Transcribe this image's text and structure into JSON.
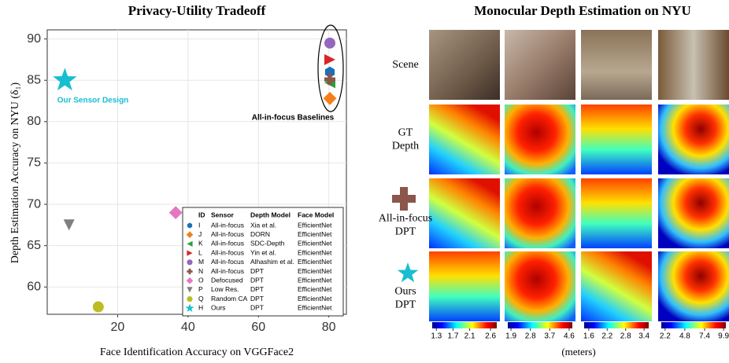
{
  "chart_data": {
    "type": "scatter",
    "title": "Privacy-Utility Tradeoff",
    "x_label": "Face Identification Accuracy on VGGFace2",
    "y_label": "Depth Estimation Accuracy on NYU  (δ₁)",
    "xlim": [
      0,
      85
    ],
    "xticks": [
      20,
      40,
      60,
      80
    ],
    "ylim": [
      56.7,
      91.1
    ],
    "yticks": [
      60,
      65,
      70,
      75,
      80,
      85,
      90
    ],
    "grid": true,
    "annotations": [
      "Our Sensor Design",
      "All-in-focus Baselines"
    ],
    "legend_headers": [
      "ID",
      "Sensor",
      "Depth Model",
      "Face Model"
    ],
    "series": [
      {
        "id": "I",
        "sensor": "All-in-focus",
        "depth_model": "Xia et al.",
        "face_model": "EfficientNet",
        "marker": "hexagon",
        "color": "#1f6fb4",
        "x": [
          80.3
        ],
        "values": [
          86
        ]
      },
      {
        "id": "J",
        "sensor": "All-in-focus",
        "depth_model": "DORN",
        "face_model": "EfficientNet",
        "marker": "diamond",
        "color": "#f47f1a",
        "x": [
          80.3
        ],
        "values": [
          82.8
        ]
      },
      {
        "id": "K",
        "sensor": "All-in-focus",
        "depth_model": "SDC-Depth",
        "face_model": "EfficientNet",
        "marker": "triangle-left",
        "color": "#2e9e3a",
        "x": [
          80.3
        ],
        "values": [
          84.7
        ]
      },
      {
        "id": "L",
        "sensor": "All-in-focus",
        "depth_model": "Yin et al.",
        "face_model": "EfficientNet",
        "marker": "triangle-right",
        "color": "#d62728",
        "x": [
          80.3
        ],
        "values": [
          87.5
        ]
      },
      {
        "id": "M",
        "sensor": "All-in-focus",
        "depth_model": "Alhashim et al.",
        "face_model": "EfficientNet",
        "marker": "circle",
        "color": "#9467bd",
        "x": [
          80.3
        ],
        "values": [
          89.5
        ]
      },
      {
        "id": "N",
        "sensor": "All-in-focus",
        "depth_model": "DPT",
        "face_model": "EfficientNet",
        "marker": "plus",
        "color": "#8c564b",
        "x": [
          80.3
        ],
        "values": [
          85.1
        ]
      },
      {
        "id": "O",
        "sensor": "Defocused",
        "depth_model": "DPT",
        "face_model": "EfficientNet",
        "marker": "diamond",
        "color": "#e377c2",
        "x": [
          36.5
        ],
        "values": [
          69
        ]
      },
      {
        "id": "P",
        "sensor": "Low Res.",
        "depth_model": "DPT",
        "face_model": "EfficientNet",
        "marker": "triangle-down",
        "color": "#7f7f7f",
        "x": [
          6.2
        ],
        "values": [
          67.5
        ]
      },
      {
        "id": "Q",
        "sensor": "Random CA",
        "depth_model": "DPT",
        "face_model": "EfficientNet",
        "marker": "circle",
        "color": "#bcbd22",
        "x": [
          14.5
        ],
        "values": [
          57.6
        ]
      },
      {
        "id": "H",
        "sensor": "Ours",
        "depth_model": "DPT",
        "face_model": "EfficientNet",
        "marker": "star",
        "color": "#17becf",
        "x": [
          5
        ],
        "values": [
          85
        ]
      }
    ]
  },
  "depth_panel": {
    "title": "Monocular Depth Estimation on NYU",
    "row_labels": [
      [
        "Scene"
      ],
      [
        "GT",
        "Depth"
      ],
      [
        "All-in-focus",
        "DPT"
      ],
      [
        "Ours",
        "DPT"
      ]
    ],
    "unit": "(meters)",
    "colorbars": [
      {
        "lim": [
          1.2,
          2.75
        ],
        "ticks": [
          1.3,
          1.7,
          2.1,
          2.6
        ]
      },
      {
        "lim": [
          1.75,
          4.75
        ],
        "ticks": [
          1.9,
          2.8,
          3.7,
          4.6
        ]
      },
      {
        "lim": [
          1.45,
          3.55
        ],
        "ticks": [
          1.6,
          2.2,
          2.8,
          3.4
        ]
      },
      {
        "lim": [
          1.7,
          10.2
        ],
        "ticks": [
          2.2,
          4.8,
          7.4,
          9.9
        ]
      }
    ]
  }
}
